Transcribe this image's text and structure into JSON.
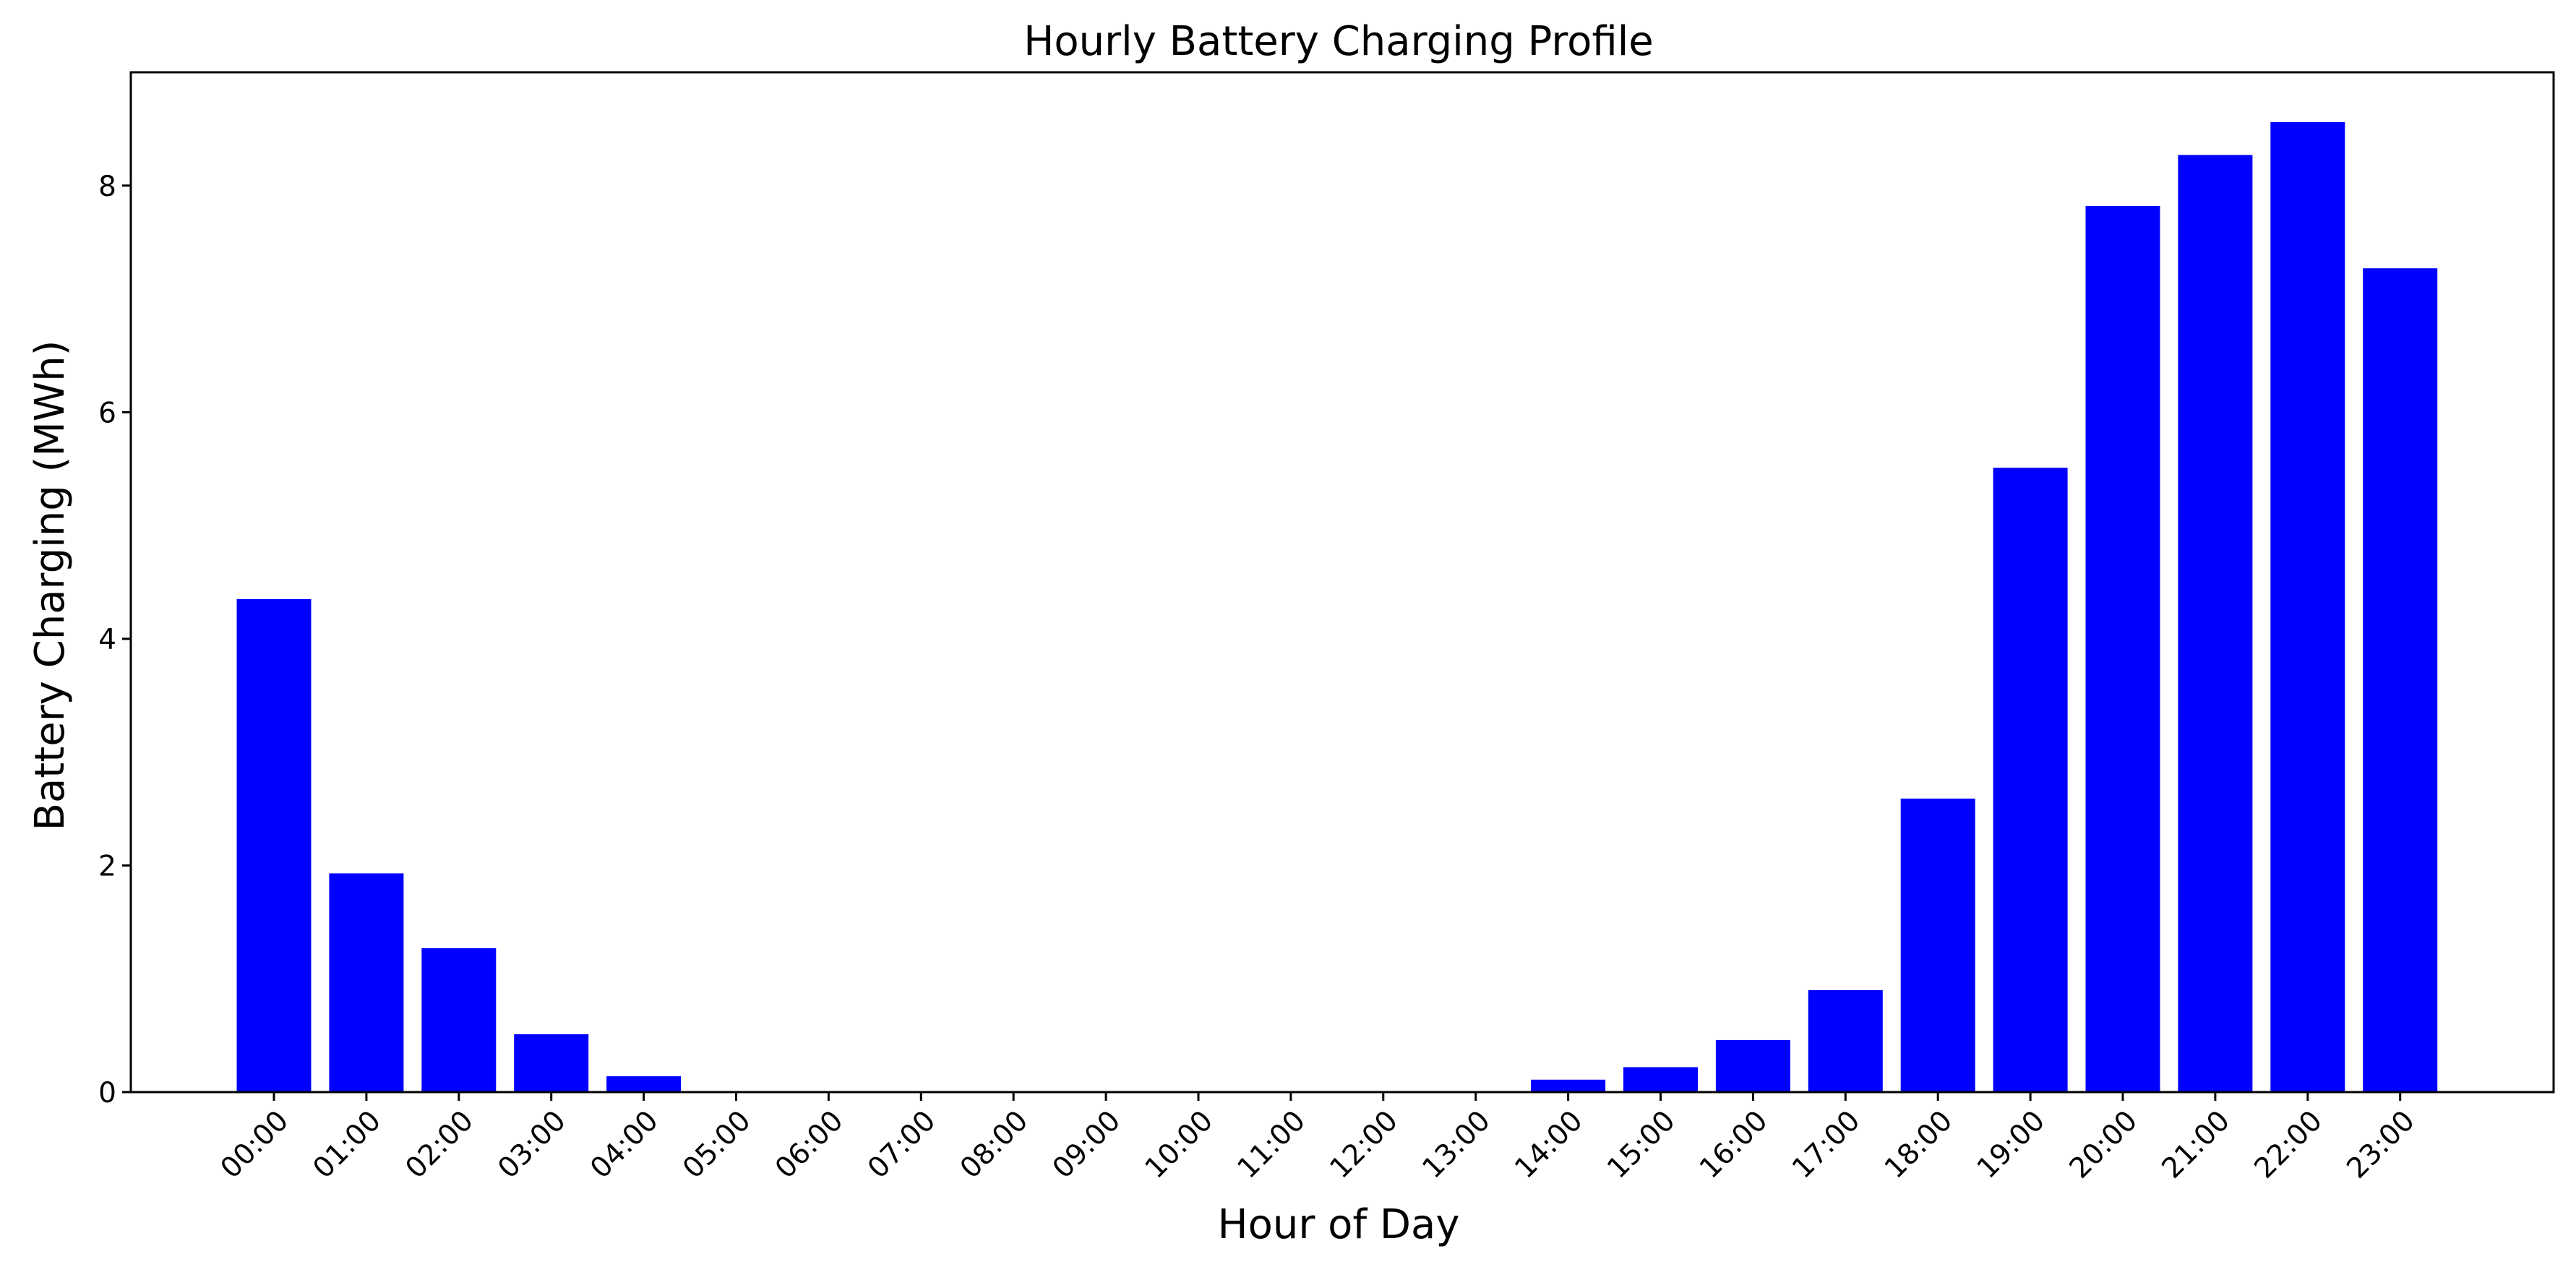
{
  "chart_data": {
    "type": "bar",
    "title": "Hourly Battery Charging Profile",
    "xlabel": "Hour of Day",
    "ylabel": "Battery Charging (MWh)",
    "categories": [
      "00:00",
      "01:00",
      "02:00",
      "03:00",
      "04:00",
      "05:00",
      "06:00",
      "07:00",
      "08:00",
      "09:00",
      "10:00",
      "11:00",
      "12:00",
      "13:00",
      "14:00",
      "15:00",
      "16:00",
      "17:00",
      "18:00",
      "19:00",
      "20:00",
      "21:00",
      "22:00",
      "23:00"
    ],
    "values": [
      4.35,
      1.93,
      1.27,
      0.51,
      0.14,
      0,
      0,
      0,
      0,
      0,
      0,
      0,
      0,
      0,
      0.11,
      0.22,
      0.46,
      0.9,
      2.59,
      5.51,
      7.82,
      8.27,
      8.56,
      7.27
    ],
    "ylim": [
      0,
      9
    ],
    "yticks": [
      0,
      2,
      4,
      6,
      8
    ],
    "grid": false,
    "legend": "none",
    "bar_color": "#0000ff"
  }
}
